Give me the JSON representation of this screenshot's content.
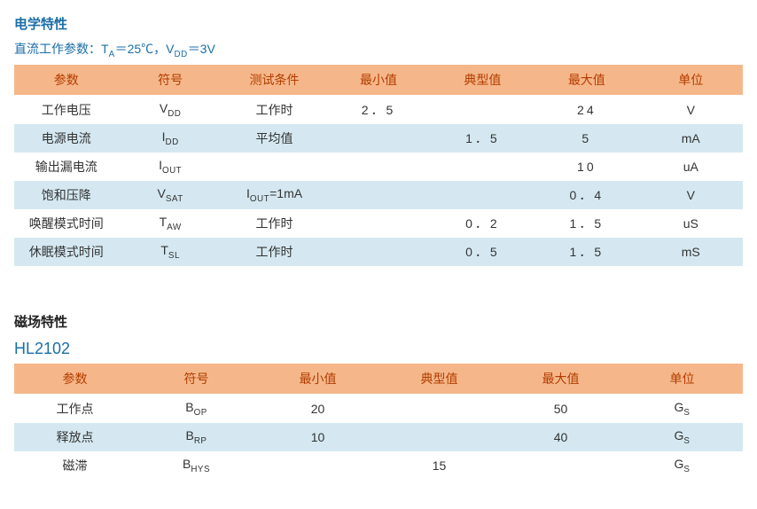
{
  "section1": {
    "title": "电学特性",
    "subtitle_prefix": "直流工作参数：T",
    "subtitle_sub1": "A",
    "subtitle_mid": "＝25℃，V",
    "subtitle_sub2": "DD",
    "subtitle_suffix": "＝3V",
    "headers": [
      "参数",
      "符号",
      "测试条件",
      "最小值",
      "典型值",
      "最大值",
      "单位"
    ],
    "rows": [
      {
        "param": "工作电压",
        "sym_main": "V",
        "sym_sub": "DD",
        "cond": "工作时",
        "cond_sub": "",
        "min": "2．5",
        "typ": "",
        "max": "24",
        "unit": "V",
        "stripe": "white"
      },
      {
        "param": "电源电流",
        "sym_main": "I",
        "sym_sub": "DD",
        "cond": "平均值",
        "cond_sub": "",
        "min": "",
        "typ": "1．5",
        "max": "5",
        "unit": "mA",
        "stripe": "blue"
      },
      {
        "param": "输出漏电流",
        "sym_main": "I",
        "sym_sub": "OUT",
        "cond": "",
        "cond_sub": "",
        "min": "",
        "typ": "",
        "max": "10",
        "unit": "uA",
        "stripe": "white"
      },
      {
        "param": "饱和压降",
        "sym_main": "V",
        "sym_sub": "SAT",
        "cond": "I",
        "cond_sub": "OUT",
        "cond_suffix": "=1mA",
        "min": "",
        "typ": "",
        "max": "0．4",
        "unit": "V",
        "stripe": "blue"
      },
      {
        "param": "唤醒模式时间",
        "sym_main": "T",
        "sym_sub": "AW",
        "cond": "工作时",
        "cond_sub": "",
        "min": "",
        "typ": "0．2",
        "max": "1．5",
        "unit": "uS",
        "stripe": "white"
      },
      {
        "param": "休眠模式时间",
        "sym_main": "T",
        "sym_sub": "SL",
        "cond": "工作时",
        "cond_sub": "",
        "min": "",
        "typ": "0．5",
        "max": "1．5",
        "unit": "mS",
        "stripe": "blue"
      }
    ]
  },
  "section2": {
    "title": "磁场特性",
    "product": "HL2102",
    "headers": [
      "参数",
      "符号",
      "最小值",
      "典型值",
      "最大值",
      "单位"
    ],
    "rows": [
      {
        "param": "工作点",
        "sym_main": "B",
        "sym_sub": "OP",
        "min": "20",
        "typ": "",
        "max": "50",
        "unit": "G",
        "unit_sub": "S",
        "stripe": "white"
      },
      {
        "param": "释放点",
        "sym_main": "B",
        "sym_sub": "RP",
        "min": "10",
        "typ": "",
        "max": "40",
        "unit": "G",
        "unit_sub": "S",
        "stripe": "blue"
      },
      {
        "param": "磁滞",
        "sym_main": "B",
        "sym_sub": "HYS",
        "min": "",
        "typ": "15",
        "max": "",
        "unit": "G",
        "unit_sub": "S",
        "stripe": "white"
      }
    ]
  },
  "colors": {
    "header_bg": "#f5b78a",
    "header_fg": "#b33c00",
    "row_blue": "#d5e8f1",
    "row_white": "#ffffff",
    "title_color": "#1b6ea8"
  }
}
